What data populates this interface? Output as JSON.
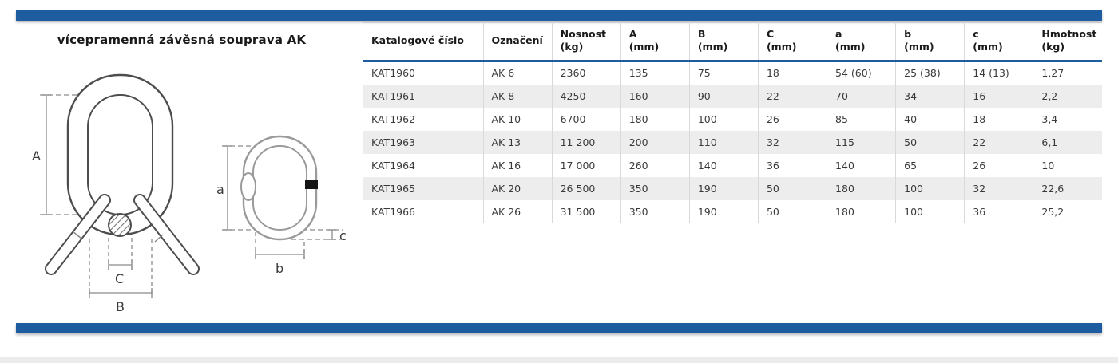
{
  "page": {
    "title": "vícepramenná závěsná souprava AK",
    "accent_color": "#1d5c9e",
    "stripe_color": "#ededed"
  },
  "diagram": {
    "labels": {
      "A": "A",
      "B": "B",
      "C": "C",
      "a": "a",
      "b": "b",
      "c": "c"
    }
  },
  "table": {
    "columns": [
      {
        "label": "Katalogové číslo",
        "unit": ""
      },
      {
        "label": "Označení",
        "unit": ""
      },
      {
        "label": "Nosnost",
        "unit": "(kg)"
      },
      {
        "label": "A",
        "unit": "(mm)"
      },
      {
        "label": "B",
        "unit": "(mm)"
      },
      {
        "label": "C",
        "unit": "(mm)"
      },
      {
        "label": "a",
        "unit": "(mm)"
      },
      {
        "label": "b",
        "unit": "(mm)"
      },
      {
        "label": "c",
        "unit": "(mm)"
      },
      {
        "label": "Hmotnost",
        "unit": "(kg)"
      }
    ],
    "rows": [
      [
        "KAT1960",
        "AK 6",
        "2360",
        "135",
        "75",
        "18",
        "54 (60)",
        "25 (38)",
        "14 (13)",
        "1,27"
      ],
      [
        "KAT1961",
        "AK 8",
        "4250",
        "160",
        "90",
        "22",
        "70",
        "34",
        "16",
        "2,2"
      ],
      [
        "KAT1962",
        "AK 10",
        "6700",
        "180",
        "100",
        "26",
        "85",
        "40",
        "18",
        "3,4"
      ],
      [
        "KAT1963",
        "AK 13",
        "11 200",
        "200",
        "110",
        "32",
        "115",
        "50",
        "22",
        "6,1"
      ],
      [
        "KAT1964",
        "AK 16",
        "17 000",
        "260",
        "140",
        "36",
        "140",
        "65",
        "26",
        "10"
      ],
      [
        "KAT1965",
        "AK 20",
        "26 500",
        "350",
        "190",
        "50",
        "180",
        "100",
        "32",
        "22,6"
      ],
      [
        "KAT1966",
        "AK 26",
        "31 500",
        "350",
        "190",
        "50",
        "180",
        "100",
        "36",
        "25,2"
      ]
    ]
  }
}
